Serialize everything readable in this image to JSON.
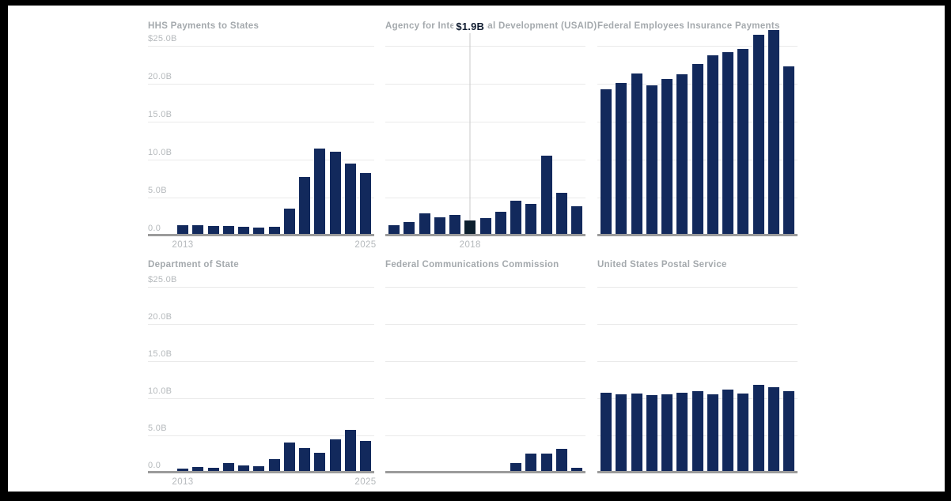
{
  "colors": {
    "background": "#000000",
    "panel": "#ffffff",
    "bar": "#12295c",
    "bar_highlight": "#0c202f",
    "title_text": "#a4a9ad",
    "tick_text": "#b5b9bc",
    "gridline": "#eaeaea",
    "axis_line": "#9b9b9b",
    "crosshair": "#c9c9c9",
    "tooltip_text": "#101c30"
  },
  "y_axis": {
    "tick_labels": [
      "$25.0B",
      "20.0B",
      "15.0B",
      "10.0B",
      "5.0B",
      "0.0"
    ],
    "max": 25
  },
  "years": [
    2013,
    2014,
    2015,
    2016,
    2017,
    2018,
    2019,
    2020,
    2021,
    2022,
    2023,
    2024,
    2025
  ],
  "chart_data": [
    {
      "type": "bar",
      "title": "HHS Payments to States",
      "ylabel": "Billions of dollars",
      "ylim": [
        0,
        25
      ],
      "grid": true,
      "show_y_axis_labels": true,
      "y_gridlines_extended": true,
      "x_tick_first": "2013",
      "x_tick_last": "2025",
      "categories": [
        2013,
        2014,
        2015,
        2016,
        2017,
        2018,
        2019,
        2020,
        2021,
        2022,
        2023,
        2024,
        2025
      ],
      "values": [
        1.2,
        1.2,
        1.1,
        1.1,
        1.0,
        0.9,
        1.0,
        3.4,
        7.6,
        11.4,
        10.9,
        9.4,
        8.1
      ]
    },
    {
      "type": "bar",
      "title": "Agency for International Development (USAID)",
      "ylabel": "Billions of dollars",
      "ylim": [
        0,
        25
      ],
      "grid": true,
      "show_y_axis_labels": false,
      "y_gridlines_extended": false,
      "hover": {
        "index": 5,
        "value_label": "$1.9B",
        "year_label": "2018"
      },
      "categories": [
        2013,
        2014,
        2015,
        2016,
        2017,
        2018,
        2019,
        2020,
        2021,
        2022,
        2023,
        2024,
        2025
      ],
      "values": [
        1.3,
        1.7,
        2.8,
        2.3,
        2.6,
        1.9,
        2.2,
        3.0,
        4.5,
        4.1,
        10.4,
        5.5,
        3.8
      ]
    },
    {
      "type": "bar",
      "title": "Federal Employees Insurance Payments",
      "ylabel": "Billions of dollars",
      "ylim": [
        0,
        25
      ],
      "grid": true,
      "show_y_axis_labels": false,
      "y_gridlines_extended": false,
      "categories": [
        2013,
        2014,
        2015,
        2016,
        2017,
        2018,
        2019,
        2020,
        2021,
        2022,
        2023,
        2024,
        2025
      ],
      "values": [
        19.2,
        20.0,
        21.3,
        19.7,
        20.5,
        21.1,
        22.5,
        23.6,
        24.1,
        24.5,
        26.4,
        27.0,
        22.2
      ]
    },
    {
      "type": "bar",
      "title": "Department of State",
      "ylabel": "Billions of dollars",
      "ylim": [
        0,
        25
      ],
      "grid": true,
      "show_y_axis_labels": true,
      "y_gridlines_extended": true,
      "x_tick_first": "2013",
      "x_tick_last": "2025",
      "categories": [
        2013,
        2014,
        2015,
        2016,
        2017,
        2018,
        2019,
        2020,
        2021,
        2022,
        2023,
        2024,
        2025
      ],
      "values": [
        0.4,
        0.6,
        0.5,
        1.2,
        0.8,
        0.7,
        1.7,
        3.9,
        3.2,
        2.6,
        4.4,
        5.6,
        4.2
      ]
    },
    {
      "type": "bar",
      "title": "Federal Communications Commission",
      "ylabel": "Billions of dollars",
      "ylim": [
        0,
        25
      ],
      "grid": true,
      "show_y_axis_labels": false,
      "y_gridlines_extended": false,
      "categories": [
        2013,
        2014,
        2015,
        2016,
        2017,
        2018,
        2019,
        2020,
        2021,
        2022,
        2023,
        2024,
        2025
      ],
      "values": [
        0,
        0,
        0,
        0,
        0,
        0,
        0,
        0,
        1.2,
        2.4,
        2.5,
        3.1,
        0.5
      ]
    },
    {
      "type": "bar",
      "title": "United States Postal Service",
      "ylabel": "Billions of dollars",
      "ylim": [
        0,
        25
      ],
      "grid": true,
      "show_y_axis_labels": false,
      "y_gridlines_extended": false,
      "categories": [
        2013,
        2014,
        2015,
        2016,
        2017,
        2018,
        2019,
        2020,
        2021,
        2022,
        2023,
        2024,
        2025
      ],
      "values": [
        10.6,
        10.4,
        10.5,
        10.3,
        10.4,
        10.6,
        10.8,
        10.4,
        11.1,
        10.5,
        11.7,
        11.4,
        10.8
      ]
    }
  ]
}
